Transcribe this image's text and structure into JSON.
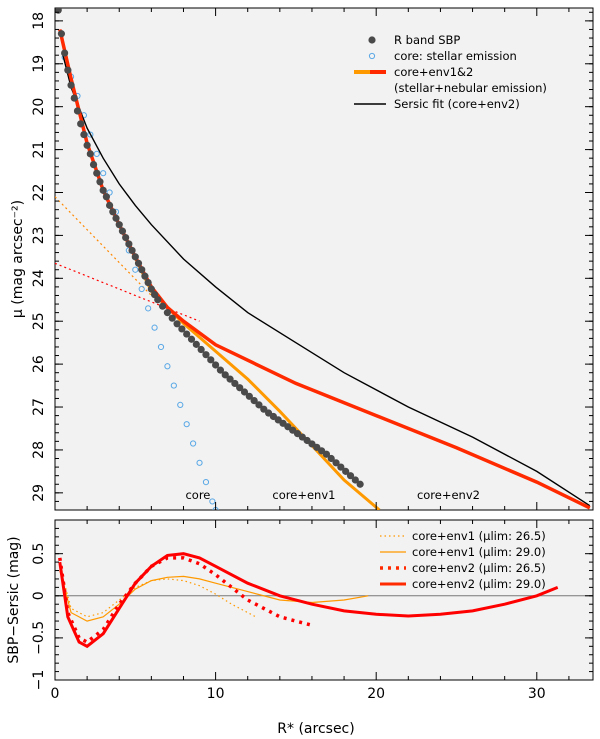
{
  "chart_data": [
    {
      "type": "scatter",
      "panel": "top",
      "xlabel": "R* (arcsec)",
      "ylabel": "μ (mag arcsec⁻²)",
      "xlim": [
        0,
        33.5
      ],
      "ylim": [
        29.4,
        17.7
      ],
      "y_ticks": [
        18,
        19,
        20,
        21,
        22,
        23,
        24,
        25,
        26,
        27,
        28,
        29
      ],
      "x_ticks": [
        0,
        10,
        20,
        30
      ],
      "region_labels": [
        {
          "text": "core",
          "x": 8.9,
          "y": 29.05
        },
        {
          "text": "core+env1",
          "x": 15.5,
          "y": 29.05
        },
        {
          "text": "core+env2",
          "x": 24.5,
          "y": 29.05
        }
      ],
      "legend": [
        {
          "label": "R band SBP",
          "style": "dark-points"
        },
        {
          "label": "core: stellar emission",
          "style": "open-blue-circles"
        },
        {
          "label": "core+env1&2",
          "style": "orange-red-line"
        },
        {
          "label": "(stellar+nebular emission)",
          "style": "continuation"
        },
        {
          "label": "Sersic fit (core+env2)",
          "style": "black-line"
        }
      ],
      "series": [
        {
          "name": "R band SBP",
          "color": "#4a4a4a",
          "points": [
            [
              0.2,
              17.75
            ],
            [
              0.4,
              18.3
            ],
            [
              0.6,
              18.75
            ],
            [
              0.8,
              19.15
            ],
            [
              1.0,
              19.5
            ],
            [
              1.2,
              19.8
            ],
            [
              1.4,
              20.1
            ],
            [
              1.6,
              20.4
            ],
            [
              1.8,
              20.65
            ],
            [
              2.0,
              20.9
            ],
            [
              2.2,
              21.1
            ],
            [
              2.4,
              21.35
            ],
            [
              2.6,
              21.55
            ],
            [
              2.8,
              21.75
            ],
            [
              3.0,
              21.95
            ],
            [
              3.2,
              22.1
            ],
            [
              3.4,
              22.3
            ],
            [
              3.6,
              22.45
            ],
            [
              3.8,
              22.6
            ],
            [
              4.0,
              22.75
            ],
            [
              4.2,
              22.9
            ],
            [
              4.4,
              23.05
            ],
            [
              4.6,
              23.2
            ],
            [
              4.8,
              23.35
            ],
            [
              5.0,
              23.5
            ],
            [
              5.2,
              23.65
            ],
            [
              5.4,
              23.8
            ],
            [
              5.6,
              23.95
            ],
            [
              5.8,
              24.1
            ],
            [
              6.0,
              24.25
            ],
            [
              6.2,
              24.38
            ],
            [
              6.4,
              24.5
            ],
            [
              6.7,
              24.65
            ],
            [
              7.0,
              24.8
            ],
            [
              7.3,
              24.93
            ],
            [
              7.6,
              25.06
            ],
            [
              7.9,
              25.18
            ],
            [
              8.2,
              25.3
            ],
            [
              8.5,
              25.42
            ],
            [
              8.8,
              25.54
            ],
            [
              9.1,
              25.66
            ],
            [
              9.4,
              25.78
            ],
            [
              9.7,
              25.9
            ],
            [
              10.0,
              26.02
            ],
            [
              10.3,
              26.14
            ],
            [
              10.6,
              26.25
            ],
            [
              10.9,
              26.35
            ],
            [
              11.2,
              26.45
            ],
            [
              11.5,
              26.55
            ],
            [
              11.8,
              26.65
            ],
            [
              12.1,
              26.75
            ],
            [
              12.4,
              26.85
            ],
            [
              12.7,
              26.95
            ],
            [
              13.0,
              27.05
            ],
            [
              13.3,
              27.14
            ],
            [
              13.6,
              27.22
            ],
            [
              13.9,
              27.3
            ],
            [
              14.2,
              27.38
            ],
            [
              14.5,
              27.46
            ],
            [
              14.8,
              27.54
            ],
            [
              15.1,
              27.62
            ],
            [
              15.4,
              27.7
            ],
            [
              15.7,
              27.78
            ],
            [
              16.0,
              27.86
            ],
            [
              16.3,
              27.94
            ],
            [
              16.6,
              28.02
            ],
            [
              16.9,
              28.1
            ],
            [
              17.2,
              28.2
            ],
            [
              17.5,
              28.3
            ],
            [
              17.8,
              28.4
            ],
            [
              18.1,
              28.5
            ],
            [
              18.4,
              28.6
            ],
            [
              18.7,
              28.7
            ],
            [
              19.0,
              28.8
            ]
          ]
        },
        {
          "name": "core: stellar emission",
          "color": "#5aa8e6",
          "points": [
            [
              0.6,
              18.85
            ],
            [
              1.0,
              19.3
            ],
            [
              1.4,
              19.75
            ],
            [
              1.8,
              20.2
            ],
            [
              2.2,
              20.65
            ],
            [
              2.6,
              21.1
            ],
            [
              3.0,
              21.55
            ],
            [
              3.4,
              22.0
            ],
            [
              3.8,
              22.45
            ],
            [
              4.2,
              22.9
            ],
            [
              4.6,
              23.35
            ],
            [
              5.0,
              23.8
            ],
            [
              5.4,
              24.25
            ],
            [
              5.8,
              24.7
            ],
            [
              6.2,
              25.15
            ],
            [
              6.6,
              25.6
            ],
            [
              7.0,
              26.05
            ],
            [
              7.4,
              26.5
            ],
            [
              7.8,
              26.95
            ],
            [
              8.2,
              27.4
            ],
            [
              8.6,
              27.85
            ],
            [
              9.0,
              28.3
            ],
            [
              9.4,
              28.75
            ],
            [
              9.8,
              29.2
            ],
            [
              10.0,
              29.4
            ]
          ]
        },
        {
          "name": "core+env1&2",
          "color": "#ff2a00",
          "points": [
            [
              0.3,
              18.2
            ],
            [
              1.0,
              19.35
            ],
            [
              2.0,
              20.85
            ],
            [
              3.0,
              21.95
            ],
            [
              4.0,
              22.75
            ],
            [
              5.0,
              23.5
            ],
            [
              6.0,
              24.2
            ],
            [
              7.0,
              24.68
            ],
            [
              8.0,
              25.0
            ],
            [
              10.0,
              25.55
            ],
            [
              15.0,
              26.45
            ],
            [
              20.0,
              27.2
            ],
            [
              25.0,
              27.95
            ],
            [
              30.0,
              28.75
            ],
            [
              33.3,
              29.35
            ]
          ]
        },
        {
          "name": "core+env1 solid",
          "color": "#ff9900",
          "points": [
            [
              4.0,
              22.75
            ],
            [
              6.0,
              24.3
            ],
            [
              8.0,
              25.05
            ],
            [
              10.0,
              25.7
            ],
            [
              12.0,
              26.35
            ],
            [
              14.0,
              27.1
            ],
            [
              16.0,
              27.9
            ],
            [
              18.0,
              28.7
            ],
            [
              20.2,
              29.4
            ]
          ]
        },
        {
          "name": "env1 dotted extrapolation",
          "color": "#ff8800",
          "points": [
            [
              0.0,
              22.1
            ],
            [
              6.0,
              24.4
            ]
          ]
        },
        {
          "name": "env2 dotted extrapolation",
          "color": "#ff0000",
          "points": [
            [
              0.0,
              23.65
            ],
            [
              9.0,
              25.0
            ]
          ]
        },
        {
          "name": "Sersic fit (core+env2)",
          "color": "#000000",
          "points": [
            [
              0.5,
              18.8
            ],
            [
              1.0,
              19.55
            ],
            [
              2.0,
              20.5
            ],
            [
              3.0,
              21.2
            ],
            [
              4.0,
              21.8
            ],
            [
              5.0,
              22.3
            ],
            [
              6.0,
              22.75
            ],
            [
              8.0,
              23.55
            ],
            [
              10.0,
              24.2
            ],
            [
              12.0,
              24.8
            ],
            [
              15.0,
              25.5
            ],
            [
              18.0,
              26.2
            ],
            [
              22.0,
              27.0
            ],
            [
              26.0,
              27.7
            ],
            [
              30.0,
              28.5
            ],
            [
              33.3,
              29.3
            ]
          ]
        }
      ]
    },
    {
      "type": "line",
      "panel": "bottom",
      "xlabel": "R* (arcsec)",
      "ylabel": "SBP−Sersic (mag)",
      "xlim": [
        0,
        33.5
      ],
      "ylim": [
        -1.0,
        0.9
      ],
      "y_ticks": [
        -1,
        -0.5,
        0,
        0.5
      ],
      "y_tick_labels": [
        "−1",
        "−0.5",
        "0",
        "0.5"
      ],
      "x_ticks": [
        0,
        10,
        20,
        30
      ],
      "x_tick_labels": [
        "0",
        "10",
        "20",
        "30"
      ],
      "legend": [
        {
          "label": "core+env1",
          "mu_lim": "26.5",
          "style": "orange-dotted"
        },
        {
          "label": "core+env1",
          "mu_lim": "29.0",
          "style": "orange-solid"
        },
        {
          "label": "core+env2",
          "mu_lim": "26.5",
          "style": "red-dotted"
        },
        {
          "label": "core+env2",
          "mu_lim": "29.0",
          "style": "red-solid"
        }
      ],
      "series": [
        {
          "name": "core+env1 (μlim: 26.5)",
          "color": "#ff9900",
          "x": [
            0.3,
            1.0,
            2.0,
            3.0,
            4.0,
            5.0,
            6.0,
            7.0,
            8.0,
            9.0,
            10.0,
            11.0,
            12.0,
            12.5
          ],
          "y": [
            0.35,
            -0.15,
            -0.25,
            -0.2,
            -0.05,
            0.1,
            0.18,
            0.2,
            0.18,
            0.12,
            0.02,
            -0.1,
            -0.2,
            -0.25
          ]
        },
        {
          "name": "core+env1 (μlim: 29.0)",
          "color": "#ff9900",
          "x": [
            0.3,
            1.0,
            2.0,
            3.0,
            4.0,
            5.0,
            6.0,
            7.0,
            8.0,
            9.0,
            10.0,
            12.0,
            14.0,
            16.0,
            18.0,
            19.5
          ],
          "y": [
            0.3,
            -0.2,
            -0.3,
            -0.25,
            -0.1,
            0.08,
            0.18,
            0.22,
            0.23,
            0.2,
            0.15,
            0.05,
            -0.05,
            -0.08,
            -0.05,
            0.0
          ]
        },
        {
          "name": "core+env2 (μlim: 26.5)",
          "color": "#ff0000",
          "x": [
            0.3,
            0.8,
            1.5,
            2.0,
            3.0,
            4.0,
            5.0,
            6.0,
            7.0,
            8.0,
            9.0,
            10.0,
            11.0,
            12.0,
            13.0,
            14.0,
            15.0,
            16.0
          ],
          "y": [
            0.45,
            -0.2,
            -0.5,
            -0.55,
            -0.4,
            -0.1,
            0.15,
            0.35,
            0.45,
            0.45,
            0.38,
            0.25,
            0.1,
            -0.05,
            -0.15,
            -0.25,
            -0.3,
            -0.35
          ]
        },
        {
          "name": "core+env2 (μlim: 29.0)",
          "color": "#ff0000",
          "x": [
            0.3,
            0.8,
            1.5,
            2.0,
            3.0,
            4.0,
            5.0,
            6.0,
            7.0,
            8.0,
            9.0,
            10.0,
            12.0,
            14.0,
            16.0,
            18.0,
            20.0,
            22.0,
            24.0,
            26.0,
            28.0,
            30.0,
            31.3
          ],
          "y": [
            0.4,
            -0.25,
            -0.55,
            -0.6,
            -0.45,
            -0.15,
            0.15,
            0.35,
            0.48,
            0.5,
            0.45,
            0.35,
            0.15,
            0.0,
            -0.1,
            -0.18,
            -0.22,
            -0.24,
            -0.22,
            -0.18,
            -0.1,
            0.0,
            0.1
          ]
        }
      ]
    }
  ],
  "labels": {
    "top_ylabel": "μ (mag arcsec⁻²)",
    "bottom_ylabel": "SBP−Sersic (mag)",
    "xlabel": "R* (arcsec)",
    "top_y_tick_labels": [
      "18",
      "19",
      "20",
      "21",
      "22",
      "23",
      "24",
      "25",
      "26",
      "27",
      "28",
      "29"
    ],
    "top_legend": [
      "R band SBP",
      "core: stellar emission",
      "core+env1&2",
      "(stellar+nebular emission)",
      "Sersic fit (core+env2)"
    ],
    "bottom_legend": [
      "core+env1 (μlim: 26.5)",
      "core+env1 (μlim: 29.0)",
      "core+env2 (μlim: 26.5)",
      "core+env2 (μlim: 29.0)"
    ],
    "region_labels": [
      "core",
      "core+env1",
      "core+env2"
    ]
  },
  "colors": {
    "background": "#f2f2f2",
    "sbp": "#4a4a4a",
    "core": "#5aa8e6",
    "env1": "#ff9900",
    "env2": "#ff2a00",
    "sersic": "#000000"
  }
}
